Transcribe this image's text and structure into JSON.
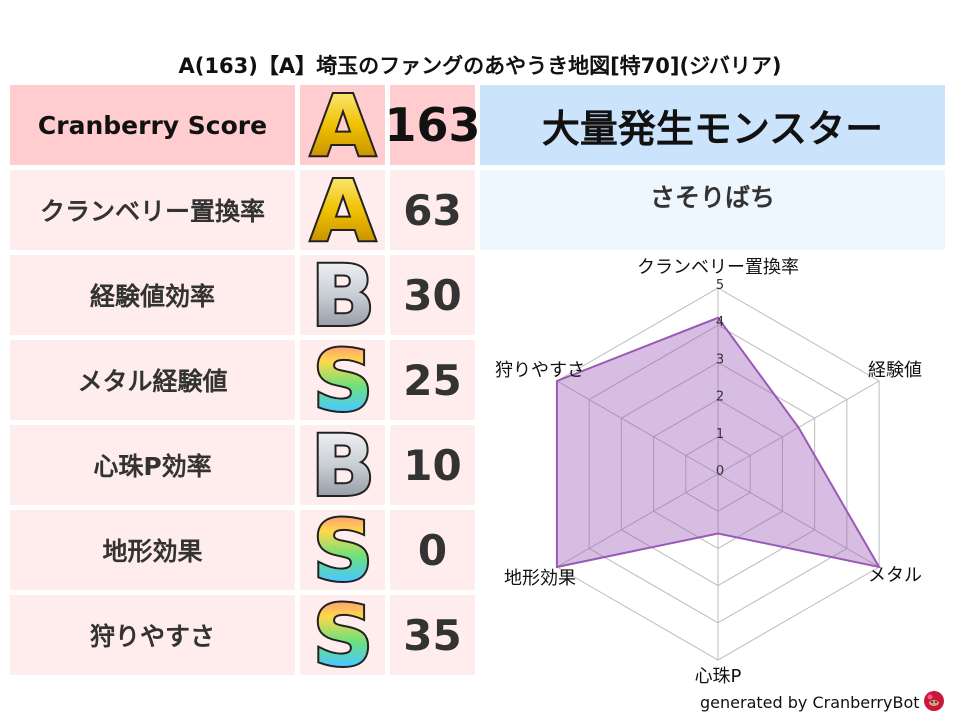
{
  "title": "A(163)【A】埼玉のファングのあやうき地図[特70](ジバリア)",
  "rows": [
    {
      "label": "Cranberry Score",
      "grade": "A",
      "value": "163"
    },
    {
      "label": "クランベリー置換率",
      "grade": "A",
      "value": "63"
    },
    {
      "label": "経験値効率",
      "grade": "B",
      "value": "30"
    },
    {
      "label": "メタル経験値",
      "grade": "S",
      "value": "25"
    },
    {
      "label": "心珠P効率",
      "grade": "B",
      "value": "10"
    },
    {
      "label": "地形効果",
      "grade": "S",
      "value": "0"
    },
    {
      "label": "狩りやすさ",
      "grade": "S",
      "value": "35"
    }
  ],
  "monster": {
    "header": "大量発生モンスター",
    "name": "さそりばち"
  },
  "chart_data": {
    "type": "radar",
    "axes": [
      "クランベリー置換率",
      "経験値",
      "メタル",
      "心珠P",
      "地形効果",
      "狩りやすさ"
    ],
    "values": [
      4.2,
      2.5,
      5,
      1.6,
      5,
      5
    ],
    "range": [
      0,
      5
    ],
    "ticks": [
      "0",
      "1",
      "2",
      "3",
      "4",
      "5"
    ],
    "color": "#9b59b6"
  },
  "footer": "generated by CranberryBot"
}
